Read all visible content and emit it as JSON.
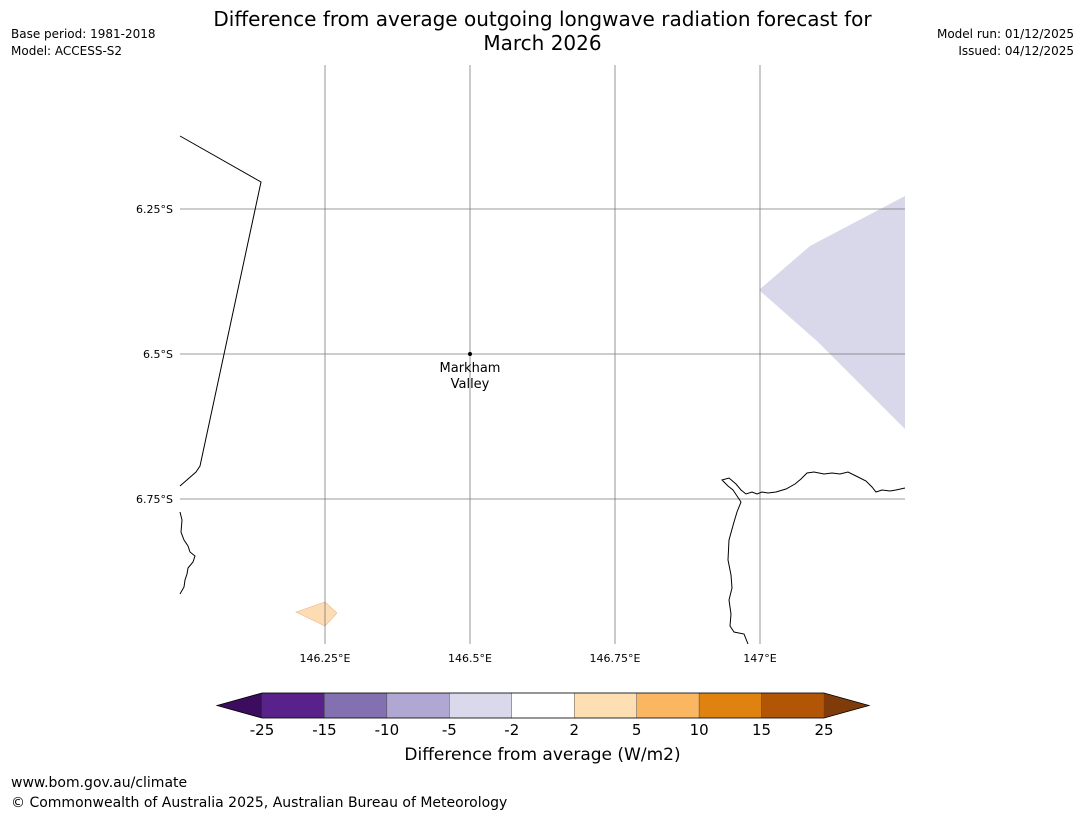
{
  "header": {
    "title_line1": "Difference from average outgoing longwave radiation forecast for",
    "title_line2": "March 2026",
    "base_period": "Base period: 1981-2018",
    "model": "Model: ACCESS-S2",
    "model_run": "Model run: 01/12/2025",
    "issued": "Issued: 04/12/2025"
  },
  "map": {
    "lat_labels": [
      "6.25°S",
      "6.5°S",
      "6.75°S"
    ],
    "lon_labels": [
      "146.25°E",
      "146.5°E",
      "146.75°E",
      "147°E"
    ],
    "place": {
      "name_line1": "Markham",
      "name_line2": "Valley",
      "lat": -6.5,
      "lon": 146.5
    },
    "colors": {
      "grid": "#7a7a7a",
      "coast": "#000000",
      "negative_region": "#d8d8ea",
      "positive_region": "#fddcb4"
    }
  },
  "colorbar": {
    "ticks": [
      "-25",
      "-15",
      "-10",
      "-5",
      "-2",
      "2",
      "5",
      "10",
      "15",
      "25"
    ],
    "colors": [
      "#59228a",
      "#8270b0",
      "#b0a8d2",
      "#d9d9eb",
      "#ffffff",
      "#fddfb3",
      "#fbb661",
      "#e0820f",
      "#b25606"
    ],
    "extend_low_color": "#3c0d5e",
    "extend_high_color": "#7f3b09",
    "label": "Difference from average (W/m2)"
  },
  "footer": {
    "url": "www.bom.gov.au/climate",
    "copyright": "© Commonwealth of Australia 2025, Australian Bureau of Meteorology"
  }
}
